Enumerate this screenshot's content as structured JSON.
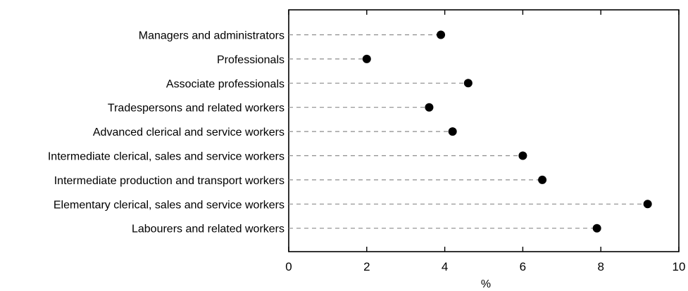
{
  "chart_data": {
    "type": "scatter",
    "title": "",
    "xlabel": "%",
    "ylabel": "",
    "xlim": [
      0,
      10
    ],
    "xticks": [
      "0",
      "2",
      "4",
      "6",
      "8",
      "10"
    ],
    "grid": false,
    "legend": "none",
    "marker_color": "#000000",
    "leader_color": "#8c8c8c",
    "categories": [
      "Managers and administrators",
      "Professionals",
      "Associate professionals",
      "Tradespersons and related workers",
      "Advanced clerical and service workers",
      "Intermediate clerical, sales and service workers",
      "Intermediate production and transport workers",
      "Elementary clerical, sales and service workers",
      "Labourers and related workers"
    ],
    "values": [
      3.9,
      2.0,
      4.6,
      3.6,
      4.2,
      6.0,
      6.5,
      9.2,
      7.9
    ]
  }
}
